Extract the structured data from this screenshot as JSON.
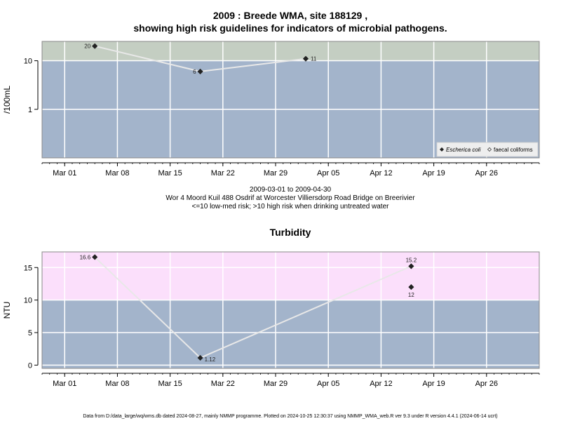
{
  "chart_data": [
    {
      "type": "line",
      "title": "2009 : Breede WMA, site 188129 ,",
      "subtitle": "showing high risk guidelines for indicators of microbial pathogens.",
      "ylabel": "/100mL",
      "yscale": "log",
      "yticks": [
        1,
        10
      ],
      "ylim": [
        0.1,
        25
      ],
      "xlim": [
        "2009-02-26",
        "2009-05-03"
      ],
      "xticks": [
        "Mar 01",
        "Mar 08",
        "Mar 15",
        "Mar 22",
        "Mar 29",
        "Apr 05",
        "Apr 12",
        "Apr 19",
        "Apr 26"
      ],
      "xtick_dates": [
        "2009-03-01",
        "2009-03-08",
        "2009-03-15",
        "2009-03-22",
        "2009-03-29",
        "2009-04-05",
        "2009-04-12",
        "2009-04-19",
        "2009-04-26"
      ],
      "thresholds": [
        {
          "below": 10,
          "color": "#a3b4cb"
        },
        {
          "above": 10,
          "color": "#c4cec2"
        }
      ],
      "series": [
        {
          "name": "Escherica coli",
          "marker": "filled-diamond",
          "points": [
            {
              "x": "2009-03-05",
              "y": 20,
              "label": "20",
              "label_pos": "left"
            },
            {
              "x": "2009-03-19",
              "y": 6,
              "label": "6",
              "label_pos": "left"
            },
            {
              "x": "2009-04-02",
              "y": 11,
              "label": "11",
              "label_pos": "right"
            }
          ]
        },
        {
          "name": "faecal coliforms",
          "marker": "open-diamond",
          "points": []
        }
      ],
      "legend": {
        "position": "bottom-right",
        "entries": [
          "Escherica coli",
          "faecal coliforms"
        ]
      },
      "caption_lines": [
        "2009-03-01 to 2009-04-30",
        "Wor 4 Moord Kuil 488 Osdrif at Worcester Villiersdorp Road Bridge on Breerivier",
        "<=10 low-med risk; >10 high risk when drinking untreated water"
      ]
    },
    {
      "type": "line",
      "title": "Turbidity",
      "ylabel": "NTU",
      "yticks": [
        0,
        5,
        10,
        15
      ],
      "ylim": [
        -0.5,
        17.4
      ],
      "xlim": [
        "2009-02-26",
        "2009-05-03"
      ],
      "xticks": [
        "Mar 01",
        "Mar 08",
        "Mar 15",
        "Mar 22",
        "Mar 29",
        "Apr 05",
        "Apr 12",
        "Apr 19",
        "Apr 26"
      ],
      "xtick_dates": [
        "2009-03-01",
        "2009-03-08",
        "2009-03-15",
        "2009-03-22",
        "2009-03-29",
        "2009-04-05",
        "2009-04-12",
        "2009-04-19",
        "2009-04-26"
      ],
      "thresholds": [
        {
          "below": 10,
          "color": "#a3b4cb"
        },
        {
          "above": 10,
          "color": "#fbdffb"
        }
      ],
      "series": [
        {
          "name": "",
          "marker": "filled-diamond",
          "connected": [
            true,
            true,
            true,
            false
          ],
          "points": [
            {
              "x": "2009-03-05",
              "y": 16.6,
              "label": "16.6",
              "label_pos": "left"
            },
            {
              "x": "2009-03-19",
              "y": 1.12,
              "label": "1.12",
              "label_pos": "below-right"
            },
            {
              "x": "2009-04-16",
              "y": 15.2,
              "label": "15.2",
              "label_pos": "above"
            },
            {
              "x": "2009-04-16",
              "y": 12,
              "label": "12",
              "label_pos": "below"
            }
          ]
        }
      ]
    }
  ],
  "footer": "Data from D:/data_large/wq/wms.db dated 2024-08-27, mainly NMMP programme. Plotted on 2024-10-25 12:30:37 using NMMP_WMA_web.R ver 9.3 under R version 4.4.1 (2024-06-14 ucrt)"
}
